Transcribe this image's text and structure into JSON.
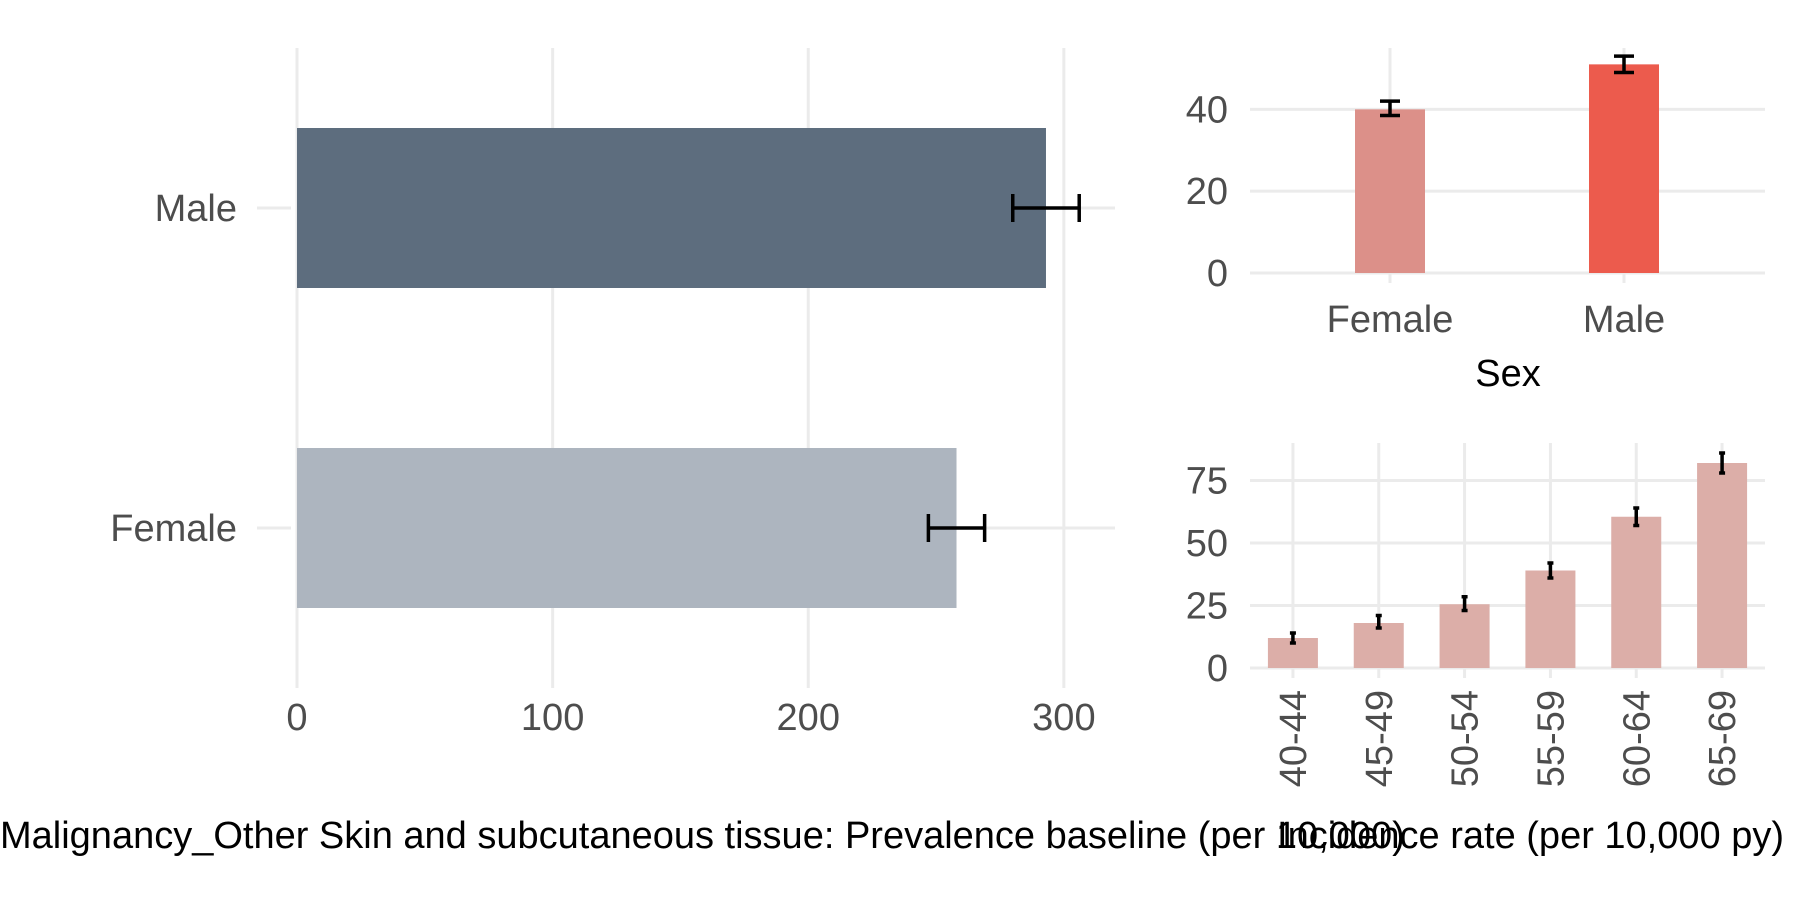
{
  "colors": {
    "bar_male_prevalence": "#5d6d7e",
    "bar_female_prevalence": "#adb5bf",
    "bar_female_sex_incidence": "#dc9089",
    "bar_male_sex_incidence": "#ec5b4d",
    "bar_age_incidence": "#dcaea8",
    "grid": "#ebebeb",
    "error_bar": "#000000"
  },
  "chart_data": [
    {
      "type": "bar",
      "orientation": "horizontal",
      "categories": [
        "Female",
        "Male"
      ],
      "values": [
        258,
        293
      ],
      "error_low": [
        247,
        280
      ],
      "error_high": [
        269,
        306
      ],
      "xlabel": "Malignancy_Other Skin and subcutaneous tissue: Prevalence baseline (per 10,000)",
      "xticks": [
        "0",
        "100",
        "200",
        "300"
      ],
      "xlim": [
        0,
        320
      ],
      "grid": true
    },
    {
      "type": "bar",
      "categories": [
        "Female",
        "Male"
      ],
      "values": [
        40,
        51
      ],
      "error_low": [
        38.5,
        49
      ],
      "error_high": [
        42,
        53
      ],
      "xlabel": "Sex",
      "yticks": [
        "0",
        "20",
        "40"
      ],
      "ylim": [
        0,
        55
      ],
      "grid": true
    },
    {
      "type": "bar",
      "categories": [
        "40-44",
        "45-49",
        "50-54",
        "55-59",
        "60-64",
        "65-69"
      ],
      "values": [
        12,
        18,
        25.5,
        39,
        60.5,
        82
      ],
      "error_low": [
        10,
        16,
        23,
        36,
        57,
        78
      ],
      "error_high": [
        14,
        21,
        28.5,
        42,
        64,
        86
      ],
      "xlabel": "Incidence rate (per 10,000 py)",
      "yticks": [
        "0",
        "25",
        "50",
        "75"
      ],
      "ylim": [
        0,
        90
      ],
      "grid": true
    }
  ]
}
